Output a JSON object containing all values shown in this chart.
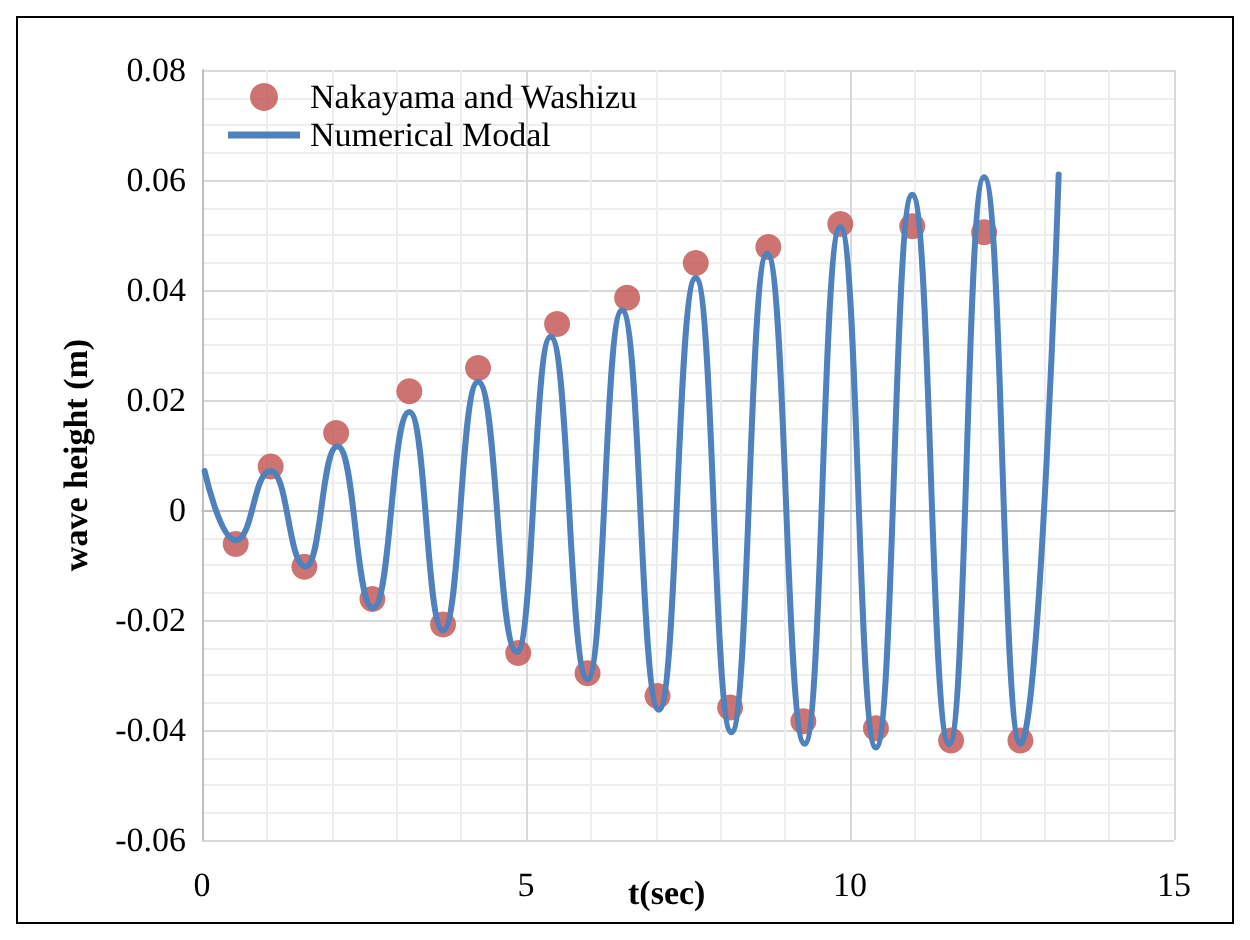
{
  "chart_data": {
    "type": "scatter",
    "xlabel": "t(sec)",
    "ylabel": "wave height (m)",
    "xlim": [
      0,
      15
    ],
    "xticks": [
      0,
      5,
      10,
      15
    ],
    "ylim": [
      -0.06,
      0.08
    ],
    "yticks": [
      -0.06,
      -0.04,
      -0.02,
      0,
      0.02,
      0.04,
      0.06,
      0.08
    ],
    "grid": true,
    "legend": "top left",
    "series": [
      {
        "name": "Nakayama and Washizu",
        "marker": "circle",
        "color": "#c0504d",
        "x": [
          0.52,
          1.06,
          1.58,
          2.07,
          2.63,
          3.2,
          3.72,
          4.26,
          4.88,
          5.48,
          5.95,
          6.56,
          7.03,
          7.62,
          8.15,
          8.74,
          9.28,
          9.85,
          10.4,
          10.96,
          11.56,
          12.07,
          12.63
        ],
        "values": [
          -0.0062,
          0.0079,
          -0.0103,
          0.014,
          -0.0162,
          0.0216,
          -0.0208,
          0.0258,
          -0.026,
          0.0338,
          -0.0297,
          0.0386,
          -0.0338,
          0.0449,
          -0.0359,
          0.0478,
          -0.0384,
          0.052,
          -0.0397,
          0.0516,
          -0.0419,
          0.0505,
          -0.0419
        ]
      },
      {
        "name": "Numerical Modal",
        "type": "line",
        "marker": "none",
        "color": "#4f81bd",
        "x": [
          0.04,
          0.52,
          1.06,
          1.6,
          2.09,
          2.64,
          3.2,
          3.72,
          4.26,
          4.86,
          5.38,
          5.95,
          6.48,
          7.05,
          7.62,
          8.17,
          8.72,
          9.3,
          9.85,
          10.4,
          10.96,
          11.53,
          12.07,
          12.63,
          13.22
        ],
        "values": [
          0.0071,
          -0.0055,
          0.0071,
          -0.0103,
          0.0116,
          -0.0178,
          0.0178,
          -0.0219,
          0.0233,
          -0.0258,
          0.0315,
          -0.0308,
          0.0363,
          -0.0363,
          0.0422,
          -0.0404,
          0.0466,
          -0.0425,
          0.0514,
          -0.0432,
          0.0573,
          -0.0425,
          0.0605,
          -0.0425,
          0.061
        ]
      }
    ]
  }
}
